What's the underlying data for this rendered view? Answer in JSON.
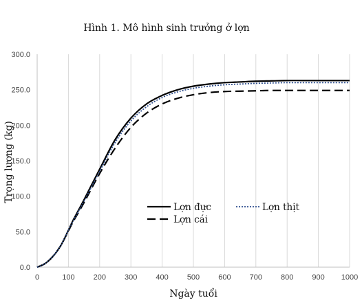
{
  "chart_data": {
    "type": "line",
    "title": "Hình 1. Mô hình sinh trưởng ở lợn",
    "xlabel": "Ngày tuổi",
    "ylabel": "Trọng lượng (kg)",
    "xlim": [
      0,
      1000
    ],
    "ylim": [
      0,
      300
    ],
    "x_ticks": [
      "0",
      "100",
      "200",
      "300",
      "400",
      "500",
      "600",
      "700",
      "800",
      "900",
      "1000"
    ],
    "y_ticks": [
      "0.0",
      "50.0",
      "100.0",
      "150.0",
      "200.0",
      "250.0",
      "300.0"
    ],
    "grid": "vertical",
    "legend": "center-right",
    "x": [
      0,
      25,
      50,
      75,
      100,
      115,
      150,
      200,
      250,
      300,
      350,
      400,
      450,
      500,
      550,
      600,
      650,
      700,
      750,
      800,
      850,
      900,
      950,
      1000
    ],
    "series": [
      {
        "name": "Lợn đực",
        "style": "solid",
        "color": "#000000",
        "values": [
          0,
          5,
          15,
          30,
          52,
          66,
          95,
          138,
          180,
          210,
          230,
          242,
          250,
          255,
          258,
          260,
          261,
          262,
          262.5,
          263,
          263,
          263,
          263,
          263
        ]
      },
      {
        "name": "Lợn cái",
        "style": "dashed",
        "color": "#000000",
        "values": [
          0,
          5,
          15,
          30,
          51,
          64,
          91,
          132,
          168,
          197,
          217,
          230,
          238,
          243,
          246,
          247.5,
          248,
          248.5,
          249,
          249,
          249,
          249,
          249,
          249
        ]
      },
      {
        "name": "Lợn thịt",
        "style": "dotted",
        "color": "#2f4f8f",
        "values": [
          0,
          5,
          15,
          30,
          52,
          65,
          93,
          135,
          176,
          206,
          226,
          239,
          247,
          252,
          255,
          257,
          258,
          259,
          259.5,
          260,
          260,
          260,
          260,
          260
        ]
      }
    ],
    "legend_rows": [
      [
        "Lợn đực",
        "Lợn thịt"
      ],
      [
        "Lợn cái"
      ]
    ]
  }
}
